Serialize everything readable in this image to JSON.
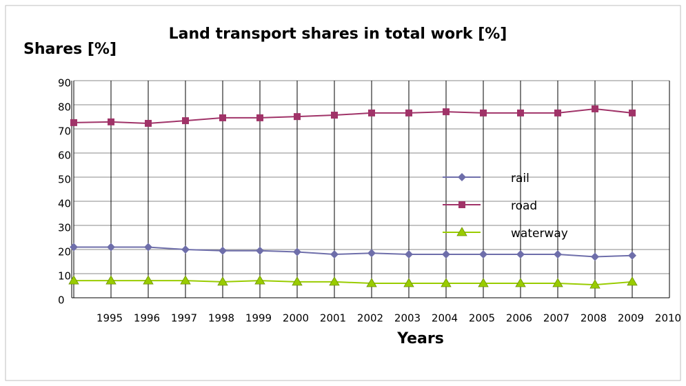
{
  "chart_data": {
    "type": "line",
    "title": "Land transport shares in total work [%]",
    "y_label": "Shares [%]",
    "x_label": "Years",
    "categories": [
      null,
      "1995",
      "1996",
      "1997",
      "1998",
      "1999",
      "2000",
      "2001",
      "2002",
      "2003",
      "2004",
      "2005",
      "2006",
      "2007",
      "2008",
      "2009",
      "2010"
    ],
    "series": [
      {
        "name": "rail",
        "color": "#6e6eaa",
        "marker": "diamond",
        "values": [
          21,
          21,
          21,
          20,
          19.5,
          19.5,
          19,
          18,
          18.5,
          18,
          18,
          18,
          18,
          18,
          17,
          17.5,
          null
        ]
      },
      {
        "name": "road",
        "color": "#a03368",
        "marker": "square",
        "values": [
          72.6,
          72.9,
          72.3,
          73.4,
          74.6,
          74.6,
          75.1,
          75.7,
          76.6,
          76.6,
          77.1,
          76.6,
          76.6,
          76.6,
          78.3,
          76.6,
          null
        ]
      },
      {
        "name": "waterway",
        "color": "#99cc00",
        "marker": "triangle",
        "values": [
          7.1,
          7.1,
          7.1,
          7.1,
          6.6,
          7.1,
          6.6,
          6.6,
          6,
          6,
          6,
          6,
          6,
          6,
          5.4,
          6.6,
          null
        ]
      }
    ],
    "ylim": [
      0,
      90
    ],
    "yticks": [
      0,
      10,
      20,
      30,
      40,
      50,
      60,
      70,
      80,
      90
    ],
    "grid": true
  }
}
